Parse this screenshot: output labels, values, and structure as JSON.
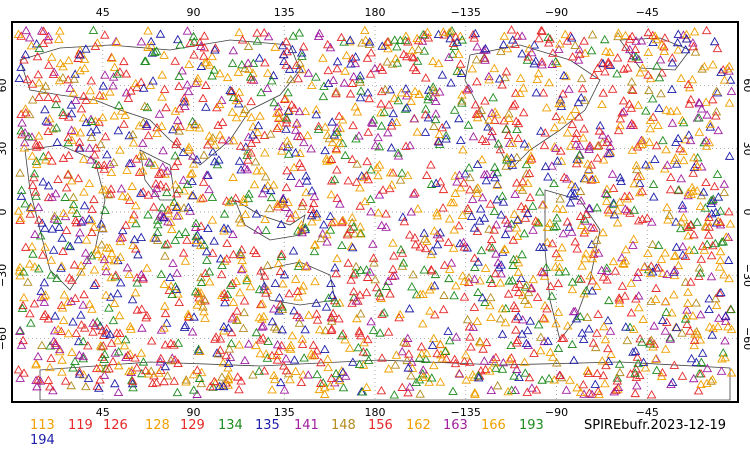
{
  "title": "SPIREbufr.2023-12-19",
  "map": {
    "top_lon_ticks": [
      "45",
      "90",
      "135",
      "180",
      "−135",
      "−90",
      "−45"
    ],
    "bottom_lon_ticks": [
      "45",
      "90",
      "135",
      "180",
      "−135",
      "−90",
      "−45"
    ],
    "lat_ticks": [
      "60",
      "30",
      "0",
      "−30",
      "−60"
    ],
    "marker": "triangle-icon",
    "land_outline_color": "#404040",
    "grid": "dotted"
  },
  "legend": [
    {
      "label": "113",
      "color": "#f0a000"
    },
    {
      "label": "119",
      "color": "#e62828"
    },
    {
      "label": "126",
      "color": "#e62828"
    },
    {
      "label": "128",
      "color": "#f0a000"
    },
    {
      "label": "129",
      "color": "#e62828"
    },
    {
      "label": "134",
      "color": "#1e8c1e"
    },
    {
      "label": "135",
      "color": "#1e1eaa"
    },
    {
      "label": "141",
      "color": "#a01ea0"
    },
    {
      "label": "148",
      "color": "#b48c1e"
    },
    {
      "label": "156",
      "color": "#e62828"
    },
    {
      "label": "162",
      "color": "#f0a000"
    },
    {
      "label": "163",
      "color": "#a01ea0"
    },
    {
      "label": "166",
      "color": "#f0a000"
    },
    {
      "label": "193",
      "color": "#1e8c1e"
    },
    {
      "label": "194",
      "color": "#1e1eaa"
    }
  ]
}
